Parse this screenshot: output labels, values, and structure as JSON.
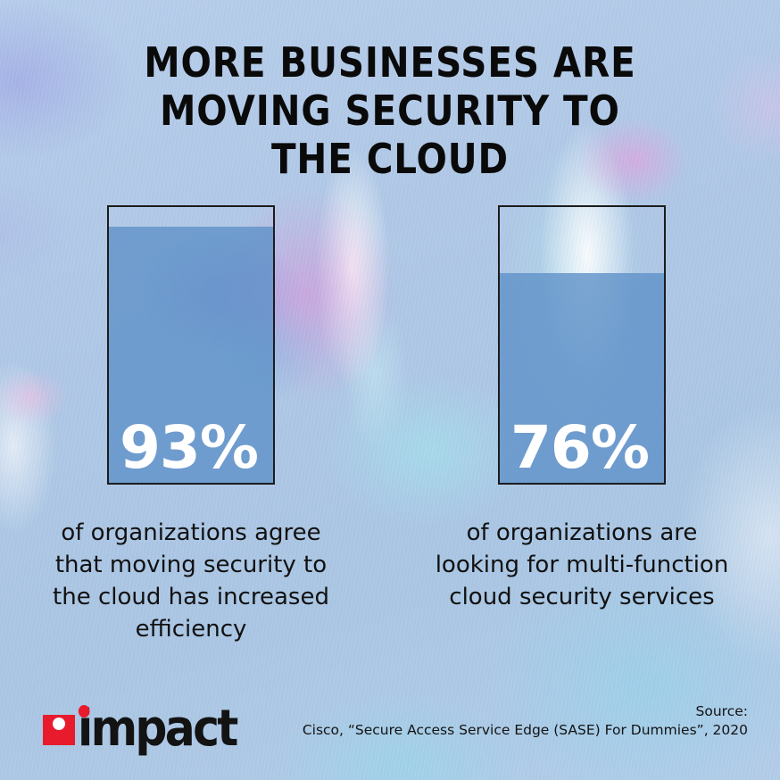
{
  "header": {
    "title_lines": [
      "MORE BUSINESSES ARE",
      "MOVING SECURITY TO",
      "THE CLOUD"
    ]
  },
  "chart_data": {
    "type": "bar",
    "title": "MORE BUSINESSES ARE MOVING SECURITY TO THE CLOUD",
    "categories": [
      "of organizations agree that moving security to the cloud has increased efficiency",
      "of organizations are looking for multi-function cloud security services"
    ],
    "values": [
      93,
      76
    ],
    "value_labels": [
      "93%",
      "76%"
    ],
    "ylim": [
      0,
      100
    ],
    "legend_position": "none",
    "grid": false,
    "source": "Cisco, “Secure Access Service Edge (SASE) For Dummies”, 2020"
  },
  "bars": [
    {
      "value": 93,
      "value_label": "93%",
      "caption_lines": [
        "of organizations agree",
        "that moving security to",
        "the cloud has increased",
        "efficiency"
      ]
    },
    {
      "value": 76,
      "value_label": "76%",
      "caption_lines": [
        "of organizations are",
        "looking for multi-function",
        "cloud security services"
      ]
    }
  ],
  "footer": {
    "logo_text": "impact",
    "source_label": "Source:",
    "source_citation": "Cisco, “Secure Access Service Edge (SASE) For Dummies”, 2020"
  },
  "colors": {
    "background_base": "#aec7e5",
    "bar_fill": "#5f91c8",
    "bar_fill_opacity": 0.8,
    "bar_border": "#1c1c1c",
    "percent_text": "#ffffff",
    "title_text": "#0a0a0a",
    "body_text": "#111111",
    "logo_red": "#e81b2d"
  }
}
